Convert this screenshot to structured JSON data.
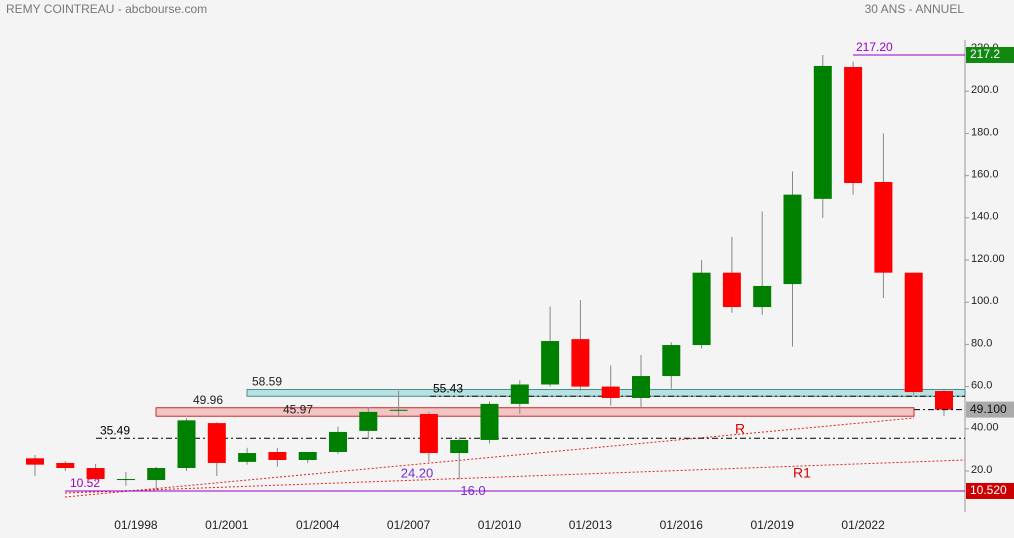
{
  "chart_data": {
    "type": "candlestick",
    "title": "REMY COINTREAU - abcbourse.com",
    "subtitle": "30 ANS - ANNUEL",
    "categories": [
      null,
      null,
      null,
      "01/1998",
      null,
      null,
      "01/2001",
      null,
      null,
      "01/2004",
      null,
      null,
      "01/2007",
      null,
      null,
      "01/2010",
      null,
      null,
      "01/2013",
      null,
      null,
      "01/2016",
      null,
      null,
      "01/2019",
      null,
      null,
      "01/2022",
      null,
      null,
      null
    ],
    "open": [
      26,
      23.8,
      21.4,
      15.7,
      15.7,
      21.4,
      42.7,
      24.3,
      29,
      25.2,
      29,
      39,
      48.5,
      47,
      28.5,
      34.7,
      51.8,
      61,
      82.5,
      60,
      54.6,
      65,
      79.7,
      114,
      97.7,
      108.6,
      149,
      211.5,
      157,
      114,
      57.9
    ],
    "high": [
      27.6,
      24.7,
      23.3,
      19.5,
      22,
      45,
      43,
      31,
      31,
      29,
      41,
      50,
      58,
      48,
      36,
      53,
      63,
      98,
      101,
      70,
      75,
      81,
      120,
      131,
      143,
      162,
      217.2,
      214,
      180,
      114,
      59
    ],
    "low": [
      17.6,
      20,
      15,
      13,
      11,
      20,
      17.6,
      23,
      22,
      23.8,
      28,
      35,
      46,
      24.2,
      16,
      33,
      47,
      60,
      58,
      51,
      50,
      59,
      78,
      95,
      94,
      79,
      140,
      151,
      102,
      56,
      46
    ],
    "close": [
      23,
      21.4,
      16.2,
      16.2,
      21.4,
      44,
      23.8,
      28.5,
      25.2,
      29,
      38.5,
      48,
      49,
      28.5,
      34.7,
      51.8,
      61,
      81.6,
      60,
      54.6,
      65,
      79.7,
      114,
      97.7,
      107.7,
      151,
      212,
      156.5,
      114,
      57.4,
      49.1
    ],
    "up_color": "#008000",
    "down_color": "#ff0000",
    "ylim": [
      1.5,
      224.3
    ],
    "yticks": [
      {
        "value": 20,
        "label": "20.0"
      },
      {
        "value": 40,
        "label": "40.00"
      },
      {
        "value": 60,
        "label": "60.0"
      },
      {
        "value": 80,
        "label": "80.0"
      },
      {
        "value": 100,
        "label": "100.0"
      },
      {
        "value": 120,
        "label": "120.00"
      },
      {
        "value": 140,
        "label": "140.0"
      },
      {
        "value": 160,
        "label": "160.0"
      },
      {
        "value": 180,
        "label": "180.0"
      },
      {
        "value": 200,
        "label": "200.0"
      },
      {
        "value": 220,
        "label": "220.0"
      }
    ],
    "levels": [
      {
        "value": 217.2,
        "label": "217.20",
        "color": "#9900cc"
      },
      {
        "value": 10.52,
        "color": "#9900cc"
      },
      {
        "value": 35.49,
        "color": "#000000"
      },
      {
        "value": 55.43,
        "color": "#000000"
      }
    ],
    "zones": [
      {
        "low": 55.43,
        "high": 58.59,
        "color": "#b8e2e2"
      },
      {
        "low": 45.97,
        "high": 49.96,
        "color": "#f2c4c4"
      }
    ],
    "annotations": [
      {
        "value": 24.2,
        "label": "24.20"
      },
      {
        "value": 16,
        "label": "16.0"
      }
    ],
    "trendlines": [
      "R",
      "R1"
    ],
    "badges": [
      {
        "value": 217.2,
        "color": "#118811"
      },
      {
        "value": 49.1,
        "label": "49.100",
        "color": "#aaaaaa"
      },
      {
        "value": 10.52,
        "label": "10.520",
        "color": "#cc0000"
      }
    ]
  }
}
